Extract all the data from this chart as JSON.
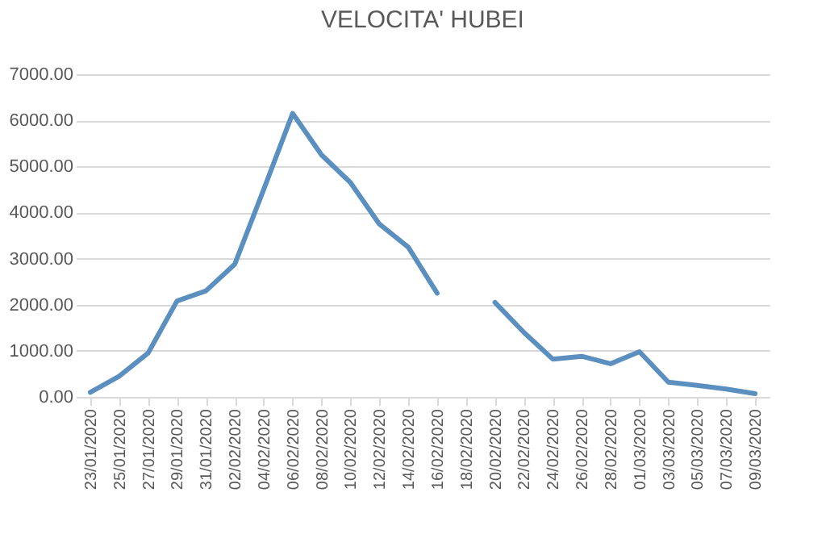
{
  "chart_data": {
    "type": "line",
    "title": "VELOCITA' HUBEI",
    "categories": [
      "23/01/2020",
      "25/01/2020",
      "27/01/2020",
      "29/01/2020",
      "31/01/2020",
      "02/02/2020",
      "04/02/2020",
      "06/02/2020",
      "08/02/2020",
      "10/02/2020",
      "12/02/2020",
      "14/02/2020",
      "16/02/2020",
      "18/02/2020",
      "20/02/2020",
      "22/02/2020",
      "24/02/2020",
      "26/02/2020",
      "28/02/2020",
      "01/03/2020",
      "03/03/2020",
      "05/03/2020",
      "07/03/2020",
      "09/03/2020"
    ],
    "series": [
      {
        "color": "#5b8fbf",
        "values": [
          100,
          450,
          950,
          2080,
          2300,
          2880,
          4500,
          6150,
          5250,
          4650,
          3750,
          3250,
          2250,
          null,
          2050,
          1400,
          820,
          880,
          720,
          980,
          320,
          250,
          170,
          70
        ]
      }
    ],
    "ylim": [
      0,
      7000
    ],
    "yticks": [
      {
        "value": 0,
        "label": "0.00"
      },
      {
        "value": 1000,
        "label": "1000.00"
      },
      {
        "value": 2000,
        "label": "2000.00"
      },
      {
        "value": 3000,
        "label": "3000.00"
      },
      {
        "value": 4000,
        "label": "4000.00"
      },
      {
        "value": 5000,
        "label": "5000.00"
      },
      {
        "value": 6000,
        "label": "6000.00"
      },
      {
        "value": 7000,
        "label": "7000.00"
      }
    ],
    "grid": "y",
    "marker": "none",
    "line_style": "solid"
  }
}
